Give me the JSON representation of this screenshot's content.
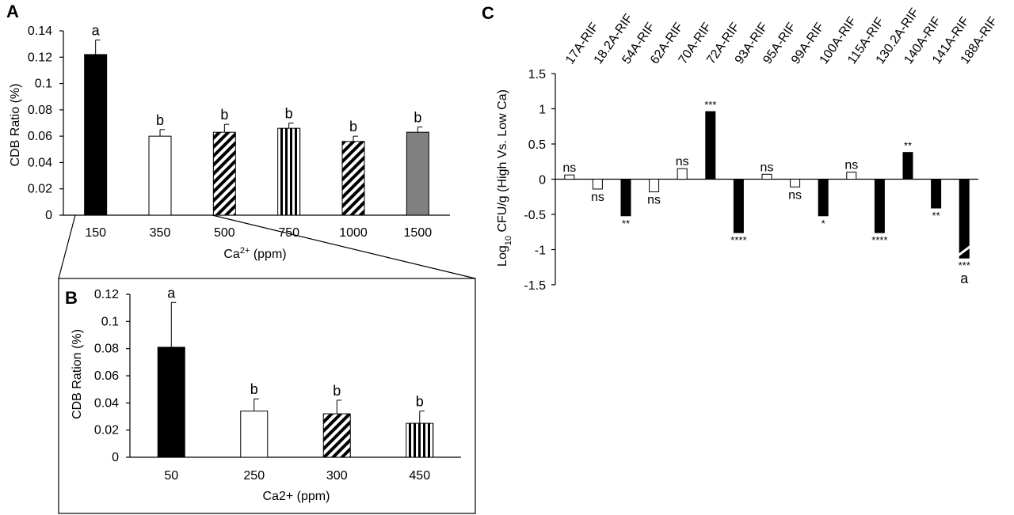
{
  "panel_labels": {
    "a": "A",
    "b": "B",
    "c": "C"
  },
  "chart_data": [
    {
      "panel": "A",
      "type": "bar",
      "title": "",
      "xlabel": "Ca",
      "xlabel_sup": "2+",
      "xlabel_unit": " (ppm)",
      "ylabel": "CDB Ratio (%)",
      "ylim": [
        0,
        0.14
      ],
      "yticks": [
        0,
        0.02,
        0.04,
        0.06,
        0.08,
        0.1,
        0.12,
        0.14
      ],
      "ytick_labels": [
        "0",
        "0.02",
        "0.04",
        "0.06",
        "0.08",
        "0.1",
        "0.12",
        "0.14"
      ],
      "categories": [
        "150",
        "350",
        "500",
        "750",
        "1000",
        "1500"
      ],
      "values": [
        0.122,
        0.06,
        0.063,
        0.066,
        0.056,
        0.063
      ],
      "errors": [
        0.011,
        0.005,
        0.006,
        0.004,
        0.004,
        0.004
      ],
      "letters": [
        "a",
        "b",
        "b",
        "b",
        "b",
        "b"
      ],
      "fills": [
        "black",
        "white",
        "diag",
        "vert",
        "diag",
        "gray"
      ]
    },
    {
      "panel": "B",
      "type": "bar",
      "title": "",
      "xlabel": "Ca2+ (ppm)",
      "ylabel": "CDB Ration (%)",
      "ylim": [
        0,
        0.12
      ],
      "yticks": [
        0,
        0.02,
        0.04,
        0.06,
        0.08,
        0.1,
        0.12
      ],
      "ytick_labels": [
        "0",
        "0.02",
        "0.04",
        "0.06",
        "0.08",
        "0.1",
        "0.12"
      ],
      "categories": [
        "50",
        "250",
        "300",
        "450"
      ],
      "values": [
        0.081,
        0.034,
        0.032,
        0.025
      ],
      "errors": [
        0.033,
        0.009,
        0.01,
        0.009
      ],
      "letters": [
        "a",
        "b",
        "b",
        "b"
      ],
      "fills": [
        "black",
        "white",
        "diag",
        "vert"
      ]
    },
    {
      "panel": "C",
      "type": "bar",
      "title": "",
      "xlabel": "",
      "ylabel_prefix": "Log",
      "ylabel_sub": "10",
      "ylabel_suffix": " CFU/g (High Vs. Low Ca)",
      "ylim": [
        -1.5,
        1.5
      ],
      "yticks": [
        -1.5,
        -1,
        -0.5,
        0,
        0.5,
        1,
        1.5
      ],
      "ytick_labels": [
        "-1.5",
        "-1",
        "-0.5",
        "0",
        "0.5",
        "1",
        "1.5"
      ],
      "categories": [
        "17A-RIF",
        "18.2A-RIF",
        "54A-RIF",
        "62A-RIF",
        "70A-RIF",
        "72A-RIF",
        "93A-RIF",
        "95A-RIF",
        "99A-RIF",
        "100A-RIF",
        "115A-RIF",
        "130.2A-RIF",
        "140A-RIF",
        "141A-RIF",
        "188A-RIF"
      ],
      "values": [
        0.06,
        -0.14,
        -0.52,
        -0.18,
        0.15,
        0.96,
        -0.76,
        0.07,
        -0.11,
        -0.52,
        0.1,
        -0.76,
        0.38,
        -0.41,
        -1.12
      ],
      "significance": [
        "ns",
        "ns",
        "**",
        "ns",
        "ns",
        "***",
        "****",
        "ns",
        "ns",
        "*",
        "ns",
        "****",
        "**",
        "**",
        "***"
      ],
      "filled": [
        false,
        false,
        true,
        false,
        false,
        true,
        true,
        false,
        false,
        true,
        false,
        true,
        true,
        true,
        true
      ],
      "extra_label": {
        "index": 14,
        "text": "a"
      }
    }
  ]
}
